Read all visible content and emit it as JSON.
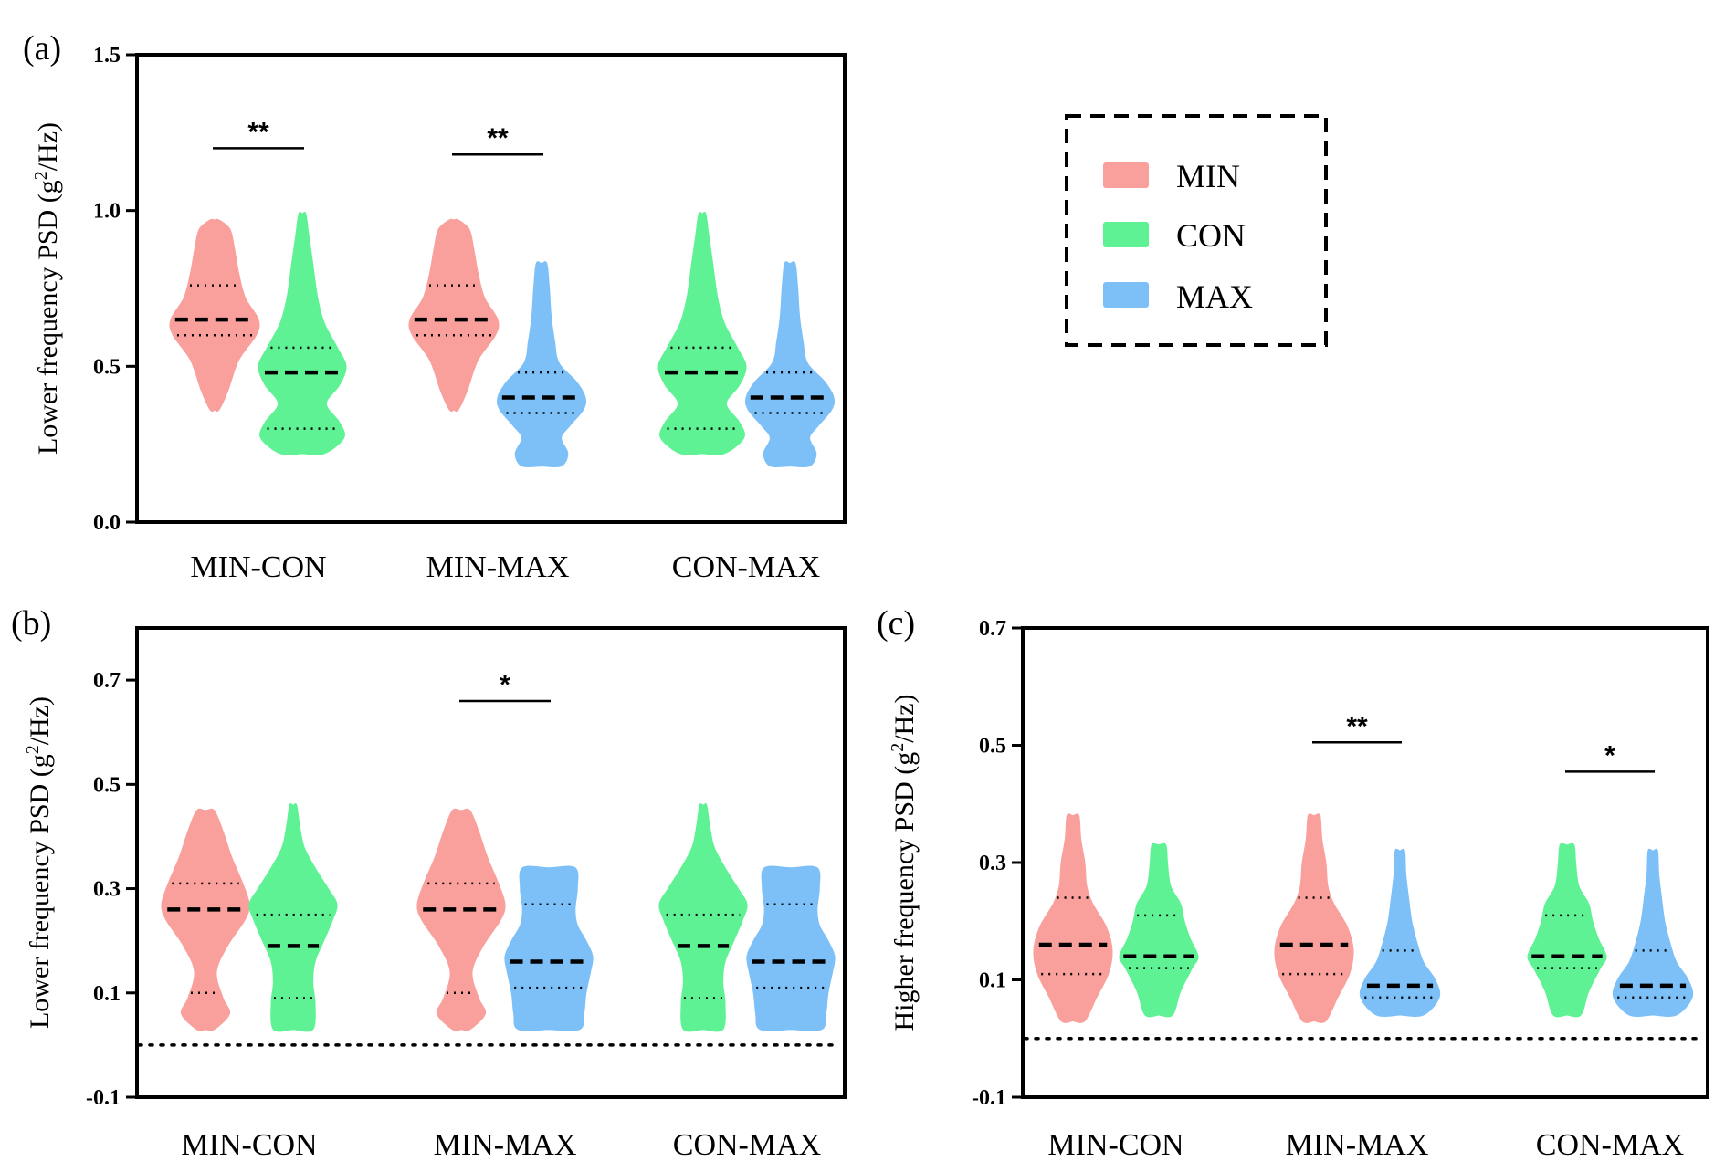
{
  "colors": {
    "MIN": "#f9a09d",
    "CON": "#5ff295",
    "MAX": "#7cc0f7"
  },
  "legend": {
    "items": [
      {
        "label": "MIN",
        "group": "MIN"
      },
      {
        "label": "CON",
        "group": "CON"
      },
      {
        "label": "MAX",
        "group": "MAX"
      }
    ]
  },
  "chart_data": [
    {
      "id": "a",
      "panel_label": "(a)",
      "type": "violin",
      "ylabel_main": "Lower frequency PSD (g",
      "ylabel_sup": "2",
      "ylabel_end": "/Hz)",
      "ylim": [
        0.0,
        1.5
      ],
      "ticks": [
        0.0,
        0.5,
        1.0,
        1.5
      ],
      "tick_labels": [
        "0.0",
        "0.5",
        "1.0",
        "1.5"
      ],
      "zero_line": false,
      "categories": [
        "MIN-CON",
        "MIN-MAX",
        "CON-MAX"
      ],
      "pairs": [
        {
          "category": "MIN-CON",
          "left": "MIN",
          "right": "CON",
          "significance": "**"
        },
        {
          "category": "MIN-MAX",
          "left": "MIN",
          "right": "MAX",
          "significance": "**"
        },
        {
          "category": "CON-MAX",
          "left": "CON",
          "right": "MAX",
          "significance": ""
        }
      ],
      "groups": {
        "MIN": {
          "min": 0.36,
          "max": 0.97,
          "q1": 0.6,
          "median": 0.65,
          "q3": 0.76,
          "profile": [
            [
              0.36,
              0.1
            ],
            [
              0.42,
              0.3
            ],
            [
              0.52,
              0.55
            ],
            [
              0.6,
              0.95
            ],
            [
              0.65,
              1.0
            ],
            [
              0.72,
              0.7
            ],
            [
              0.8,
              0.55
            ],
            [
              0.88,
              0.45
            ],
            [
              0.94,
              0.35
            ],
            [
              0.97,
              0.1
            ]
          ]
        },
        "CON": {
          "min": 0.22,
          "max": 0.99,
          "q1": 0.3,
          "median": 0.48,
          "q3": 0.56,
          "profile": [
            [
              0.22,
              0.5
            ],
            [
              0.27,
              0.95
            ],
            [
              0.32,
              0.85
            ],
            [
              0.38,
              0.55
            ],
            [
              0.44,
              0.85
            ],
            [
              0.5,
              1.0
            ],
            [
              0.56,
              0.8
            ],
            [
              0.64,
              0.5
            ],
            [
              0.72,
              0.35
            ],
            [
              0.82,
              0.25
            ],
            [
              0.92,
              0.15
            ],
            [
              0.99,
              0.08
            ]
          ]
        },
        "MAX": {
          "min": 0.18,
          "max": 0.83,
          "q1": 0.35,
          "median": 0.4,
          "q3": 0.48,
          "profile": [
            [
              0.18,
              0.45
            ],
            [
              0.22,
              0.6
            ],
            [
              0.27,
              0.45
            ],
            [
              0.31,
              0.65
            ],
            [
              0.36,
              0.95
            ],
            [
              0.4,
              1.0
            ],
            [
              0.45,
              0.8
            ],
            [
              0.51,
              0.4
            ],
            [
              0.58,
              0.3
            ],
            [
              0.66,
              0.22
            ],
            [
              0.75,
              0.18
            ],
            [
              0.83,
              0.12
            ]
          ]
        }
      }
    },
    {
      "id": "b",
      "panel_label": "(b)",
      "type": "violin",
      "ylabel_main": "Lower frequency PSD (g",
      "ylabel_sup": "2",
      "ylabel_end": "/Hz)",
      "ylim": [
        -0.1,
        0.8
      ],
      "ticks": [
        -0.1,
        0.1,
        0.3,
        0.5,
        0.7
      ],
      "tick_labels": [
        "-0.1",
        "0.1",
        "0.3",
        "0.5",
        "0.7"
      ],
      "zero_line": true,
      "categories": [
        "MIN-CON",
        "MIN-MAX",
        "CON-MAX"
      ],
      "pairs": [
        {
          "category": "MIN-CON",
          "left": "MIN",
          "right": "CON",
          "significance": ""
        },
        {
          "category": "MIN-MAX",
          "left": "MIN",
          "right": "MAX",
          "significance": "*"
        },
        {
          "category": "CON-MAX",
          "left": "CON",
          "right": "MAX",
          "significance": ""
        }
      ],
      "groups": {
        "MIN": {
          "min": 0.03,
          "max": 0.45,
          "q1": 0.1,
          "median": 0.26,
          "q3": 0.31,
          "profile": [
            [
              0.03,
              0.2
            ],
            [
              0.06,
              0.55
            ],
            [
              0.09,
              0.4
            ],
            [
              0.14,
              0.25
            ],
            [
              0.19,
              0.5
            ],
            [
              0.24,
              0.9
            ],
            [
              0.27,
              1.0
            ],
            [
              0.31,
              0.85
            ],
            [
              0.36,
              0.6
            ],
            [
              0.41,
              0.4
            ],
            [
              0.45,
              0.2
            ]
          ]
        },
        "CON": {
          "min": 0.03,
          "max": 0.46,
          "q1": 0.09,
          "median": 0.19,
          "q3": 0.25,
          "profile": [
            [
              0.03,
              0.45
            ],
            [
              0.08,
              0.5
            ],
            [
              0.12,
              0.45
            ],
            [
              0.16,
              0.5
            ],
            [
              0.2,
              0.7
            ],
            [
              0.24,
              0.9
            ],
            [
              0.27,
              1.0
            ],
            [
              0.3,
              0.8
            ],
            [
              0.34,
              0.5
            ],
            [
              0.38,
              0.25
            ],
            [
              0.42,
              0.15
            ],
            [
              0.46,
              0.08
            ]
          ]
        },
        "MAX": {
          "min": 0.03,
          "max": 0.34,
          "q1": 0.11,
          "median": 0.16,
          "q3": 0.27,
          "profile": [
            [
              0.03,
              0.7
            ],
            [
              0.06,
              0.8
            ],
            [
              0.1,
              0.85
            ],
            [
              0.14,
              0.95
            ],
            [
              0.17,
              1.0
            ],
            [
              0.2,
              0.85
            ],
            [
              0.23,
              0.65
            ],
            [
              0.26,
              0.6
            ],
            [
              0.3,
              0.65
            ],
            [
              0.34,
              0.6
            ]
          ]
        }
      }
    },
    {
      "id": "c",
      "panel_label": "(c)",
      "type": "violin",
      "ylabel_main": "Higher frequency PSD (g",
      "ylabel_sup": "2",
      "ylabel_end": "/Hz)",
      "ylim": [
        -0.1,
        0.7
      ],
      "ticks": [
        -0.1,
        0.1,
        0.3,
        0.5,
        0.7
      ],
      "tick_labels": [
        "-0.1",
        "0.1",
        "0.3",
        "0.5",
        "0.7"
      ],
      "zero_line": true,
      "categories": [
        "MIN-CON",
        "MIN-MAX",
        "CON-MAX"
      ],
      "pairs": [
        {
          "category": "MIN-CON",
          "left": "MIN",
          "right": "CON",
          "significance": ""
        },
        {
          "category": "MIN-MAX",
          "left": "MIN",
          "right": "MAX",
          "significance": "**"
        },
        {
          "category": "CON-MAX",
          "left": "CON",
          "right": "MAX",
          "significance": "*"
        }
      ],
      "groups": {
        "MIN": {
          "min": 0.03,
          "max": 0.38,
          "q1": 0.11,
          "median": 0.16,
          "q3": 0.24,
          "profile": [
            [
              0.03,
              0.3
            ],
            [
              0.07,
              0.6
            ],
            [
              0.11,
              0.9
            ],
            [
              0.15,
              1.0
            ],
            [
              0.19,
              0.85
            ],
            [
              0.23,
              0.5
            ],
            [
              0.26,
              0.35
            ],
            [
              0.3,
              0.3
            ],
            [
              0.34,
              0.2
            ],
            [
              0.38,
              0.15
            ]
          ]
        },
        "CON": {
          "min": 0.04,
          "max": 0.33,
          "q1": 0.12,
          "median": 0.14,
          "q3": 0.21,
          "profile": [
            [
              0.04,
              0.35
            ],
            [
              0.08,
              0.55
            ],
            [
              0.12,
              0.85
            ],
            [
              0.14,
              1.0
            ],
            [
              0.17,
              0.8
            ],
            [
              0.2,
              0.65
            ],
            [
              0.23,
              0.55
            ],
            [
              0.26,
              0.3
            ],
            [
              0.3,
              0.22
            ],
            [
              0.33,
              0.18
            ]
          ]
        },
        "MAX": {
          "min": 0.04,
          "max": 0.32,
          "q1": 0.07,
          "median": 0.09,
          "q3": 0.15,
          "profile": [
            [
              0.04,
              0.6
            ],
            [
              0.07,
              1.0
            ],
            [
              0.1,
              0.9
            ],
            [
              0.13,
              0.6
            ],
            [
              0.16,
              0.45
            ],
            [
              0.2,
              0.3
            ],
            [
              0.24,
              0.22
            ],
            [
              0.28,
              0.15
            ],
            [
              0.32,
              0.12
            ]
          ]
        }
      }
    }
  ]
}
